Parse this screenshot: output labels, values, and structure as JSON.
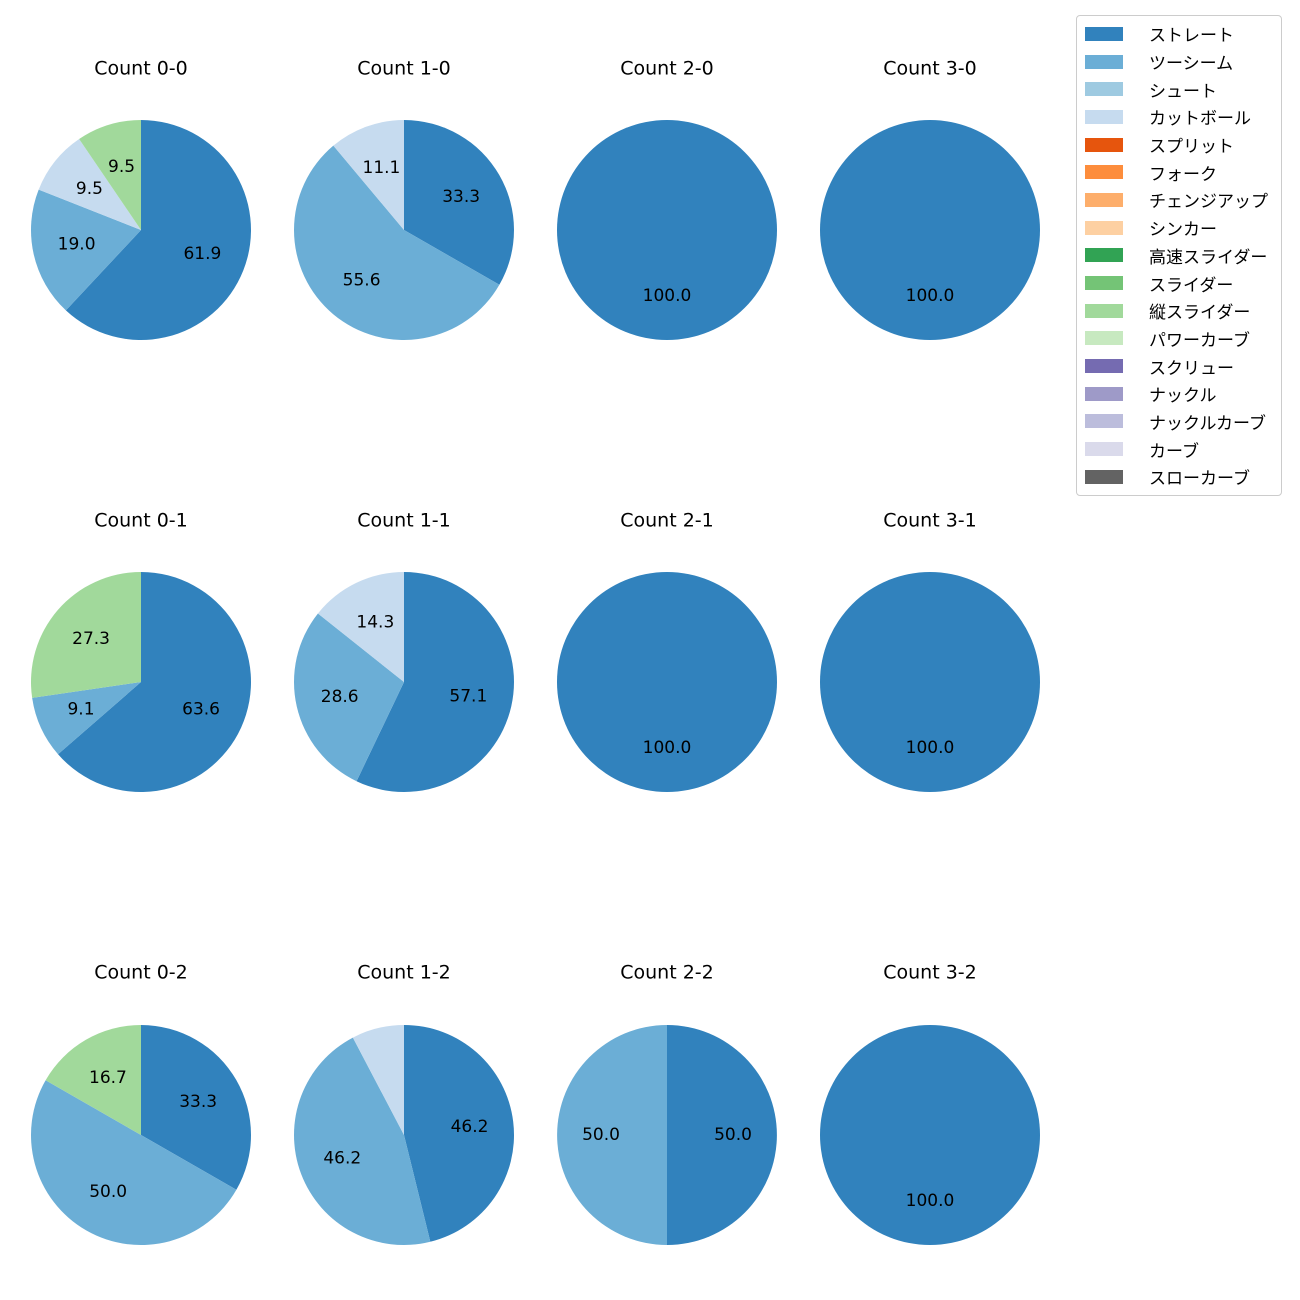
{
  "chart_data": {
    "type": "pie",
    "legend": {
      "placement": "top-right",
      "entries": [
        {
          "label": "ストレート",
          "color": "#3182bd"
        },
        {
          "label": "ツーシーム",
          "color": "#6baed6"
        },
        {
          "label": "シュート",
          "color": "#9ecae1"
        },
        {
          "label": "カットボール",
          "color": "#c6dbef"
        },
        {
          "label": "スプリット",
          "color": "#e6550d"
        },
        {
          "label": "フォーク",
          "color": "#fd8d3c"
        },
        {
          "label": "チェンジアップ",
          "color": "#fdae6b"
        },
        {
          "label": "シンカー",
          "color": "#fdd0a2"
        },
        {
          "label": "高速スライダー",
          "color": "#31a354"
        },
        {
          "label": "スライダー",
          "color": "#74c476"
        },
        {
          "label": "縦スライダー",
          "color": "#a1d99b"
        },
        {
          "label": "パワーカーブ",
          "color": "#c7e9c0"
        },
        {
          "label": "スクリュー",
          "color": "#756bb1"
        },
        {
          "label": "ナックル",
          "color": "#9e9ac8"
        },
        {
          "label": "ナックルカーブ",
          "color": "#bcbddc"
        },
        {
          "label": "カーブ",
          "color": "#dadaeb"
        },
        {
          "label": "スローカーブ",
          "color": "#636363"
        }
      ]
    },
    "charts": [
      {
        "title": "Count 0-0",
        "slices": [
          {
            "pitch": "ストレート",
            "value": 61.9,
            "label": "61.9"
          },
          {
            "pitch": "ツーシーム",
            "value": 19.0,
            "label": "19.0"
          },
          {
            "pitch": "カットボール",
            "value": 9.5,
            "label": "9.5"
          },
          {
            "pitch": "縦スライダー",
            "value": 9.5,
            "label": "9.5"
          }
        ]
      },
      {
        "title": "Count 1-0",
        "slices": [
          {
            "pitch": "ストレート",
            "value": 33.3,
            "label": "33.3"
          },
          {
            "pitch": "ツーシーム",
            "value": 55.6,
            "label": "55.6"
          },
          {
            "pitch": "カットボール",
            "value": 11.1,
            "label": "11.1"
          }
        ]
      },
      {
        "title": "Count 2-0",
        "slices": [
          {
            "pitch": "ストレート",
            "value": 100.0,
            "label": "100.0"
          }
        ]
      },
      {
        "title": "Count 3-0",
        "slices": [
          {
            "pitch": "ストレート",
            "value": 100.0,
            "label": "100.0"
          }
        ]
      },
      {
        "title": "Count 0-1",
        "slices": [
          {
            "pitch": "ストレート",
            "value": 63.6,
            "label": "63.6"
          },
          {
            "pitch": "ツーシーム",
            "value": 9.1,
            "label": "9.1"
          },
          {
            "pitch": "縦スライダー",
            "value": 27.3,
            "label": "27.3"
          }
        ]
      },
      {
        "title": "Count 1-1",
        "slices": [
          {
            "pitch": "ストレート",
            "value": 57.1,
            "label": "57.1"
          },
          {
            "pitch": "ツーシーム",
            "value": 28.6,
            "label": "28.6"
          },
          {
            "pitch": "カットボール",
            "value": 14.3,
            "label": "14.3"
          }
        ]
      },
      {
        "title": "Count 2-1",
        "slices": [
          {
            "pitch": "ストレート",
            "value": 100.0,
            "label": "100.0"
          }
        ]
      },
      {
        "title": "Count 3-1",
        "slices": [
          {
            "pitch": "ストレート",
            "value": 100.0,
            "label": "100.0"
          }
        ]
      },
      {
        "title": "Count 0-2",
        "slices": [
          {
            "pitch": "ストレート",
            "value": 33.3,
            "label": "33.3"
          },
          {
            "pitch": "ツーシーム",
            "value": 50.0,
            "label": "50.0"
          },
          {
            "pitch": "縦スライダー",
            "value": 16.7,
            "label": "16.7"
          }
        ]
      },
      {
        "title": "Count 1-2",
        "slices": [
          {
            "pitch": "ストレート",
            "value": 46.2,
            "label": "46.2"
          },
          {
            "pitch": "ツーシーム",
            "value": 46.2,
            "label": "46.2"
          },
          {
            "pitch": "カットボール",
            "value": 7.7,
            "label": ""
          }
        ]
      },
      {
        "title": "Count 2-2",
        "slices": [
          {
            "pitch": "ストレート",
            "value": 50.0,
            "label": "50.0"
          },
          {
            "pitch": "ツーシーム",
            "value": 50.0,
            "label": "50.0"
          }
        ]
      },
      {
        "title": "Count 3-2",
        "slices": [
          {
            "pitch": "ストレート",
            "value": 100.0,
            "label": "100.0"
          }
        ]
      }
    ]
  }
}
